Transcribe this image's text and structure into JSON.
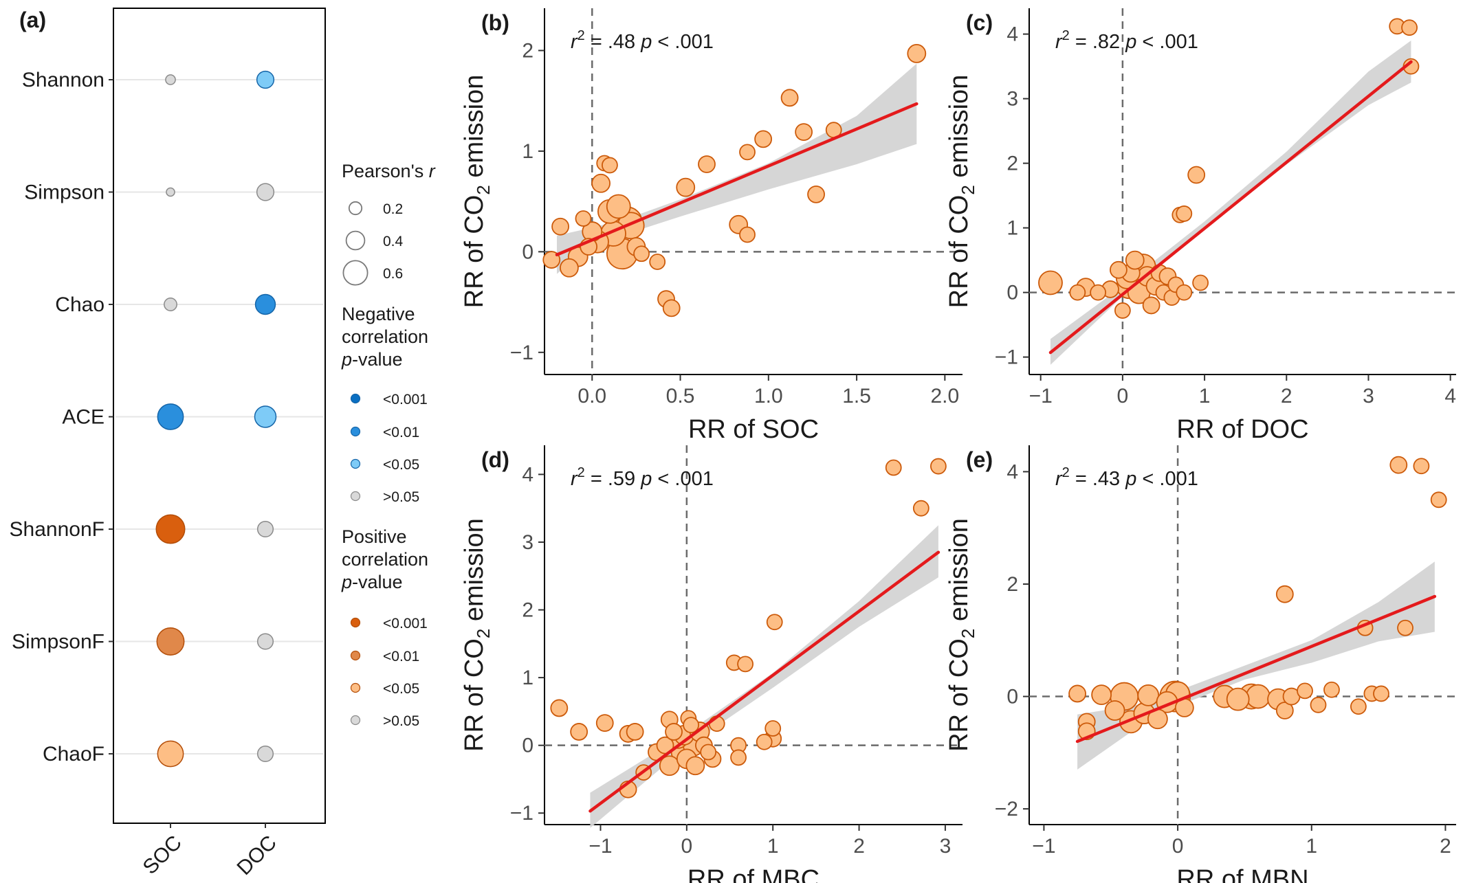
{
  "colors": {
    "point_fill": "#fdbe85",
    "point_stroke": "#cc5a0a",
    "fit_line": "#e41a1c",
    "ci_band": "#d4d4d4",
    "neg_lt001": "#0a6fc2",
    "neg_lt01": "#2a8fdd",
    "neg_lt05": "#7ecbf7",
    "pos_lt001": "#d95f0e",
    "pos_lt01": "#e0884a",
    "pos_lt05": "#fdbe85",
    "ns": "#d9d9d9"
  },
  "panel_a": {
    "label": "(a)",
    "rows": [
      "Shannon",
      "Simpson",
      "Chao",
      "ACE",
      "ShannonF",
      "SimpsonF",
      "ChaoF"
    ],
    "cols": [
      "SOC",
      "DOC"
    ],
    "cells": [
      [
        {
          "r": 0.1,
          "class": "ns"
        },
        {
          "r": 0.35,
          "class": "neg_lt05"
        }
      ],
      [
        {
          "r": 0.05,
          "class": "ns"
        },
        {
          "r": 0.35,
          "class": "ns"
        }
      ],
      [
        {
          "r": 0.2,
          "class": "ns"
        },
        {
          "r": 0.45,
          "class": "neg_lt01"
        }
      ],
      [
        {
          "r": 0.65,
          "class": "neg_lt01"
        },
        {
          "r": 0.5,
          "class": "neg_lt05"
        }
      ],
      [
        {
          "r": 0.75,
          "class": "pos_lt001"
        },
        {
          "r": 0.3,
          "class": "ns"
        }
      ],
      [
        {
          "r": 0.7,
          "class": "pos_lt01"
        },
        {
          "r": 0.3,
          "class": "ns"
        }
      ],
      [
        {
          "r": 0.65,
          "class": "pos_lt05"
        },
        {
          "r": 0.3,
          "class": "ns"
        }
      ]
    ]
  },
  "legend": {
    "size_title_prefix": "Pearson's ",
    "size_title_italic": "r",
    "sizes": [
      {
        "r": 0.2,
        "label": "0.2"
      },
      {
        "r": 0.4,
        "label": "0.4"
      },
      {
        "r": 0.6,
        "label": "0.6"
      }
    ],
    "neg_title": [
      "Negative",
      "correlation"
    ],
    "pos_title": [
      "Positive",
      "correlation"
    ],
    "pvalue_italic": "p",
    "pvalue_suffix": "-value",
    "neg_items": [
      {
        "class": "neg_lt001",
        "label": "<0.001"
      },
      {
        "class": "neg_lt01",
        "label": "<0.01"
      },
      {
        "class": "neg_lt05",
        "label": "<0.05"
      },
      {
        "class": "ns",
        "label": ">0.05"
      }
    ],
    "pos_items": [
      {
        "class": "pos_lt001",
        "label": "<0.001"
      },
      {
        "class": "pos_lt01",
        "label": "<0.01"
      },
      {
        "class": "pos_lt05",
        "label": "<0.05"
      },
      {
        "class": "ns",
        "label": ">0.05"
      }
    ]
  },
  "chart_data": [
    {
      "type": "scatter",
      "label": "(b)",
      "xlabel": "RR of SOC",
      "ylabel_pre": "RR of CO",
      "ylabel_sub": "2",
      "ylabel_post": " emission",
      "r2": ".48",
      "p": "< .001",
      "xlim": [
        -0.27,
        2.1
      ],
      "ylim": [
        -1.22,
        2.42
      ],
      "xticks": [
        {
          "v": 0,
          "t": "0.0"
        },
        {
          "v": 0.5,
          "t": "0.5"
        },
        {
          "v": 1,
          "t": "1.0"
        },
        {
          "v": 1.5,
          "t": "1.5"
        },
        {
          "v": 2,
          "t": "2.0"
        }
      ],
      "yticks": [
        {
          "v": -1,
          "t": "−1"
        },
        {
          "v": 0,
          "t": "0"
        },
        {
          "v": 1,
          "t": "1"
        },
        {
          "v": 2,
          "t": "2"
        }
      ],
      "fit": {
        "x0": -0.2,
        "x1": 1.84,
        "y0": -0.03,
        "y1": 1.47
      },
      "band_x": [
        -0.2,
        0,
        0.2,
        0.5,
        1.0,
        1.5,
        1.84
      ],
      "band_lo": [
        -0.22,
        0.06,
        0.18,
        0.35,
        0.62,
        0.87,
        1.07
      ],
      "band_hi": [
        0.16,
        0.24,
        0.33,
        0.52,
        0.88,
        1.35,
        1.87
      ],
      "points": [
        [
          -0.23,
          -0.08,
          12
        ],
        [
          -0.18,
          0.25,
          12
        ],
        [
          -0.13,
          -0.16,
          13
        ],
        [
          -0.08,
          -0.05,
          14
        ],
        [
          -0.05,
          0.33,
          11
        ],
        [
          -0.02,
          0.05,
          12
        ],
        [
          0.0,
          0.2,
          14
        ],
        [
          0.03,
          0.1,
          16
        ],
        [
          0.05,
          0.68,
          13
        ],
        [
          0.07,
          0.88,
          11
        ],
        [
          0.1,
          0.86,
          11
        ],
        [
          0.1,
          0.4,
          17
        ],
        [
          0.12,
          0.18,
          18
        ],
        [
          0.15,
          0.45,
          17
        ],
        [
          0.17,
          -0.02,
          22
        ],
        [
          0.2,
          0.3,
          21
        ],
        [
          0.22,
          0.26,
          19
        ],
        [
          0.25,
          0.05,
          13
        ],
        [
          0.28,
          -0.02,
          11
        ],
        [
          0.37,
          -0.1,
          11
        ],
        [
          0.42,
          -0.47,
          12
        ],
        [
          0.45,
          -0.56,
          12
        ],
        [
          0.53,
          0.64,
          13
        ],
        [
          0.65,
          0.87,
          12
        ],
        [
          0.83,
          0.27,
          13
        ],
        [
          0.88,
          0.17,
          11
        ],
        [
          0.88,
          0.99,
          11
        ],
        [
          0.97,
          1.12,
          12
        ],
        [
          1.12,
          1.53,
          12
        ],
        [
          1.2,
          1.19,
          12
        ],
        [
          1.27,
          0.57,
          12
        ],
        [
          1.37,
          1.21,
          11
        ],
        [
          1.84,
          1.97,
          13
        ]
      ]
    },
    {
      "type": "scatter",
      "label": "(c)",
      "xlabel": "RR of DOC",
      "ylabel_pre": "RR of CO",
      "ylabel_sub": "2",
      "ylabel_post": " emission",
      "r2": ".82",
      "p": "< .001",
      "xlim": [
        -1.14,
        4.07
      ],
      "ylim": [
        -1.27,
        4.4
      ],
      "xticks": [
        {
          "v": -1,
          "t": "−1"
        },
        {
          "v": 0,
          "t": "0"
        },
        {
          "v": 1,
          "t": "1"
        },
        {
          "v": 2,
          "t": "2"
        },
        {
          "v": 3,
          "t": "3"
        },
        {
          "v": 4,
          "t": "4"
        }
      ],
      "yticks": [
        {
          "v": -1,
          "t": "−1"
        },
        {
          "v": 0,
          "t": "0"
        },
        {
          "v": 1,
          "t": "1"
        },
        {
          "v": 2,
          "t": "2"
        },
        {
          "v": 3,
          "t": "3"
        },
        {
          "v": 4,
          "t": "4"
        }
      ],
      "fit": {
        "x0": -0.88,
        "x1": 3.52,
        "y0": -0.93,
        "y1": 3.57
      },
      "band_x": [
        -0.88,
        0,
        1,
        2,
        3,
        3.52
      ],
      "band_lo": [
        -1.12,
        -0.06,
        1.0,
        1.98,
        2.9,
        3.25
      ],
      "band_hi": [
        -0.72,
        0.1,
        1.1,
        2.18,
        3.42,
        3.9
      ],
      "points": [
        [
          -0.88,
          0.15,
          17
        ],
        [
          -0.55,
          0.0,
          11
        ],
        [
          -0.45,
          0.08,
          13
        ],
        [
          -0.3,
          0.0,
          11
        ],
        [
          -0.15,
          0.05,
          12
        ],
        [
          -0.05,
          0.35,
          12
        ],
        [
          0.0,
          -0.28,
          11
        ],
        [
          0.05,
          0.22,
          15
        ],
        [
          0.08,
          0.1,
          18
        ],
        [
          0.1,
          0.3,
          13
        ],
        [
          0.15,
          0.5,
          13
        ],
        [
          0.2,
          0.0,
          16
        ],
        [
          0.25,
          0.4,
          18
        ],
        [
          0.3,
          0.25,
          14
        ],
        [
          0.35,
          -0.2,
          12
        ],
        [
          0.4,
          0.1,
          13
        ],
        [
          0.45,
          0.3,
          12
        ],
        [
          0.5,
          0.0,
          11
        ],
        [
          0.55,
          0.25,
          12
        ],
        [
          0.6,
          -0.08,
          11
        ],
        [
          0.65,
          0.12,
          11
        ],
        [
          0.7,
          1.2,
          11
        ],
        [
          0.75,
          1.22,
          11
        ],
        [
          0.75,
          0.0,
          11
        ],
        [
          0.9,
          1.82,
          12
        ],
        [
          0.95,
          0.15,
          11
        ],
        [
          3.35,
          4.12,
          11
        ],
        [
          3.5,
          4.1,
          11
        ],
        [
          3.52,
          3.5,
          11
        ]
      ]
    },
    {
      "type": "scatter",
      "label": "(d)",
      "xlabel": "RR of MBC",
      "ylabel_pre": "RR of CO",
      "ylabel_sub": "2",
      "ylabel_post": " emission",
      "r2": ".59",
      "p": "< .001",
      "xlim": [
        -1.65,
        3.2
      ],
      "ylim": [
        -1.17,
        4.43
      ],
      "xticks": [
        {
          "v": -1,
          "t": "−1"
        },
        {
          "v": 0,
          "t": "0"
        },
        {
          "v": 1,
          "t": "1"
        },
        {
          "v": 2,
          "t": "2"
        },
        {
          "v": 3,
          "t": "3"
        }
      ],
      "yticks": [
        {
          "v": -1,
          "t": "−1"
        },
        {
          "v": 0,
          "t": "0"
        },
        {
          "v": 1,
          "t": "1"
        },
        {
          "v": 2,
          "t": "2"
        },
        {
          "v": 3,
          "t": "3"
        },
        {
          "v": 4,
          "t": "4"
        }
      ],
      "fit": {
        "x0": -1.12,
        "x1": 2.92,
        "y0": -0.97,
        "y1": 2.85
      },
      "band_x": [
        -1.12,
        0,
        1,
        2,
        2.92
      ],
      "band_lo": [
        -1.22,
        -0.02,
        0.85,
        1.75,
        2.48
      ],
      "band_hi": [
        -0.7,
        0.18,
        1.07,
        2.13,
        3.25
      ],
      "points": [
        [
          -1.48,
          0.55,
          12
        ],
        [
          -1.25,
          0.2,
          12
        ],
        [
          -0.95,
          0.33,
          12
        ],
        [
          -0.68,
          0.17,
          12
        ],
        [
          -0.6,
          0.2,
          12
        ],
        [
          -0.68,
          -0.65,
          12
        ],
        [
          -0.5,
          -0.4,
          11
        ],
        [
          -0.35,
          -0.1,
          12
        ],
        [
          -0.25,
          0.0,
          12
        ],
        [
          -0.2,
          -0.3,
          14
        ],
        [
          -0.2,
          0.38,
          12
        ],
        [
          -0.15,
          0.2,
          12
        ],
        [
          -0.1,
          0.1,
          14
        ],
        [
          -0.05,
          -0.1,
          16
        ],
        [
          -0.03,
          0.15,
          14
        ],
        [
          0.0,
          -0.2,
          14
        ],
        [
          0.02,
          0.4,
          11
        ],
        [
          0.05,
          0.3,
          11
        ],
        [
          0.08,
          0.0,
          15
        ],
        [
          0.1,
          -0.3,
          13
        ],
        [
          0.15,
          0.2,
          14
        ],
        [
          0.2,
          0.0,
          12
        ],
        [
          0.25,
          -0.1,
          11
        ],
        [
          0.3,
          -0.2,
          12
        ],
        [
          0.35,
          0.32,
          11
        ],
        [
          0.55,
          1.22,
          11
        ],
        [
          0.6,
          0.0,
          11
        ],
        [
          0.6,
          -0.18,
          11
        ],
        [
          0.68,
          1.2,
          11
        ],
        [
          0.9,
          0.05,
          11
        ],
        [
          1.0,
          0.25,
          11
        ],
        [
          1.0,
          0.1,
          12
        ],
        [
          1.02,
          1.82,
          11
        ],
        [
          2.4,
          4.1,
          11
        ],
        [
          2.72,
          3.5,
          11
        ],
        [
          2.92,
          4.12,
          11
        ]
      ]
    },
    {
      "type": "scatter",
      "label": "(e)",
      "xlabel": "RR of MBN",
      "ylabel_pre": "RR of CO",
      "ylabel_sub": "2",
      "ylabel_post": " emission",
      "r2": ".43",
      "p": "< .001",
      "xlim": [
        -1.11,
        2.08
      ],
      "ylim": [
        -2.28,
        4.47
      ],
      "xticks": [
        {
          "v": -1,
          "t": "−1"
        },
        {
          "v": 0,
          "t": "0"
        },
        {
          "v": 1,
          "t": "1"
        },
        {
          "v": 2,
          "t": "2"
        }
      ],
      "yticks": [
        {
          "v": -2,
          "t": "−2"
        },
        {
          "v": 0,
          "t": "0"
        },
        {
          "v": 2,
          "t": "2"
        },
        {
          "v": 4,
          "t": "4"
        }
      ],
      "fit": {
        "x0": -0.75,
        "x1": 1.92,
        "y0": -0.8,
        "y1": 1.78
      },
      "band_x": [
        -0.75,
        -0.3,
        0,
        0.5,
        1.0,
        1.5,
        1.92
      ],
      "band_lo": [
        -1.3,
        -0.55,
        -0.17,
        0.3,
        0.6,
        0.98,
        1.15
      ],
      "band_hi": [
        -0.32,
        -0.15,
        0.1,
        0.55,
        1.0,
        1.68,
        2.4
      ],
      "points": [
        [
          -0.75,
          0.05,
          12
        ],
        [
          -0.68,
          -0.45,
          12
        ],
        [
          -0.68,
          -0.62,
          12
        ],
        [
          -0.57,
          0.03,
          14
        ],
        [
          -0.47,
          -0.25,
          14
        ],
        [
          -0.4,
          0.0,
          20
        ],
        [
          -0.35,
          -0.45,
          16
        ],
        [
          -0.25,
          -0.3,
          15
        ],
        [
          -0.22,
          0.02,
          15
        ],
        [
          -0.15,
          -0.4,
          14
        ],
        [
          -0.08,
          -0.1,
          15
        ],
        [
          -0.02,
          0.0,
          22
        ],
        [
          0.05,
          -0.2,
          13
        ],
        [
          0.0,
          0.05,
          17
        ],
        [
          0.35,
          0.0,
          16
        ],
        [
          0.45,
          -0.05,
          16
        ],
        [
          0.55,
          0.0,
          18
        ],
        [
          0.6,
          0.0,
          17
        ],
        [
          0.75,
          -0.05,
          15
        ],
        [
          0.8,
          -0.25,
          12
        ],
        [
          0.8,
          1.82,
          12
        ],
        [
          0.85,
          0.0,
          12
        ],
        [
          0.95,
          0.1,
          11
        ],
        [
          1.05,
          -0.15,
          11
        ],
        [
          1.15,
          0.12,
          11
        ],
        [
          1.35,
          -0.18,
          11
        ],
        [
          1.4,
          1.22,
          11
        ],
        [
          1.45,
          0.05,
          11
        ],
        [
          1.52,
          0.05,
          11
        ],
        [
          1.65,
          4.12,
          12
        ],
        [
          1.7,
          1.22,
          11
        ],
        [
          1.82,
          4.1,
          11
        ],
        [
          1.95,
          3.5,
          11
        ]
      ]
    }
  ]
}
